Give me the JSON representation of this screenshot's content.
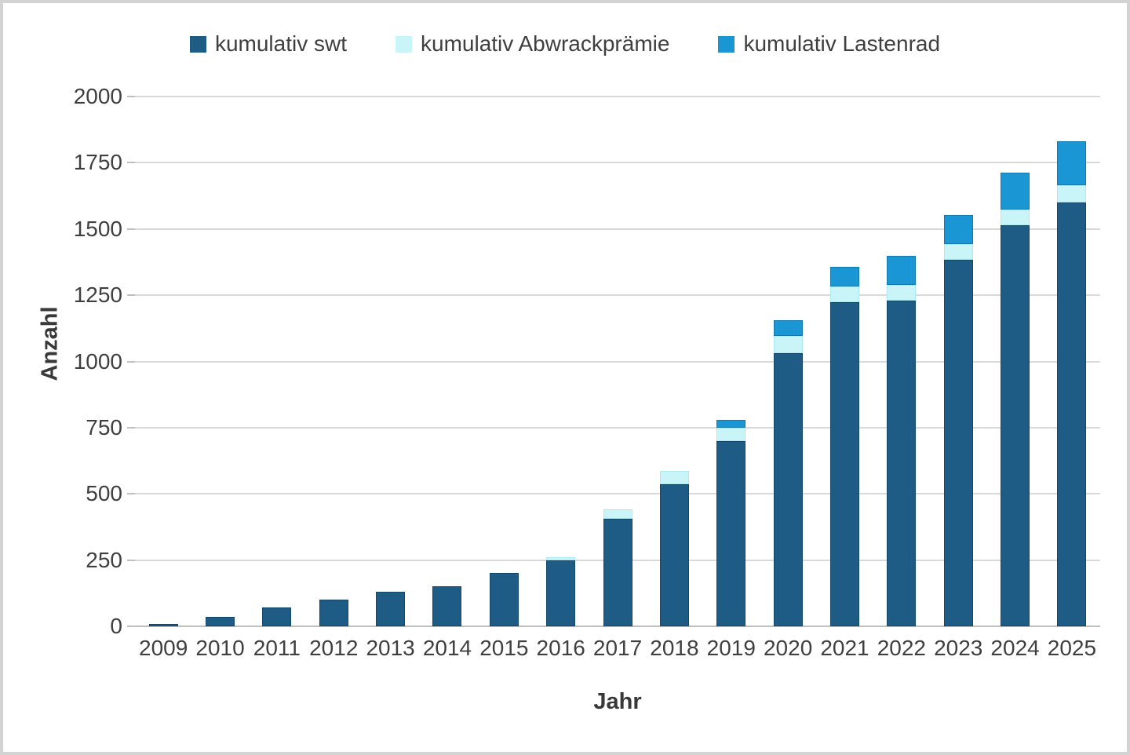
{
  "frame": {
    "border_color": "#d3d3d3",
    "background": "#ffffff"
  },
  "legend": {
    "position": "top-center",
    "items": [
      {
        "label": "kumulativ swt",
        "color": "#1f5c85"
      },
      {
        "label": "kumulativ Abwrackprämie",
        "color": "#c9f4f8"
      },
      {
        "label": "kumulativ Lastenrad",
        "color": "#1b96d5"
      }
    ]
  },
  "chart_data": {
    "type": "bar",
    "stacked": true,
    "title": "",
    "xlabel": "Jahr",
    "ylabel": "Anzahl",
    "categories": [
      "2009",
      "2010",
      "2011",
      "2012",
      "2013",
      "2014",
      "2015",
      "2016",
      "2017",
      "2018",
      "2019",
      "2020",
      "2021",
      "2022",
      "2023",
      "2024",
      "2025"
    ],
    "series": [
      {
        "name": "kumulativ swt",
        "color": "#1f5c85",
        "edge_color": "#15476b",
        "values": [
          10,
          35,
          70,
          100,
          130,
          150,
          200,
          250,
          405,
          535,
          700,
          1030,
          1225,
          1230,
          1385,
          1515,
          1600
        ]
      },
      {
        "name": "kumulativ Abwrackprämie",
        "color": "#c9f4f8",
        "edge_color": "#ace9f0",
        "values": [
          0,
          0,
          0,
          0,
          0,
          0,
          0,
          13,
          35,
          50,
          50,
          65,
          60,
          60,
          60,
          60,
          65
        ]
      },
      {
        "name": "kumulativ Lastenrad",
        "color": "#1b96d5",
        "edge_color": "#1379af",
        "values": [
          0,
          0,
          0,
          0,
          0,
          0,
          0,
          0,
          0,
          0,
          30,
          60,
          75,
          110,
          110,
          140,
          165
        ]
      }
    ],
    "stack_totals": [
      10,
      35,
      70,
      100,
      130,
      150,
      200,
      263,
      440,
      585,
      780,
      1155,
      1360,
      1400,
      1555,
      1715,
      1830
    ],
    "ylim": [
      0,
      2000
    ],
    "yticks": [
      0,
      250,
      500,
      750,
      1000,
      1250,
      1500,
      1750,
      2000
    ],
    "grid": true,
    "grid_color": "#d9d9d9",
    "baseline_color": "#bfbfbf",
    "text_color": "#3f3f3f",
    "legend_position": "top"
  }
}
